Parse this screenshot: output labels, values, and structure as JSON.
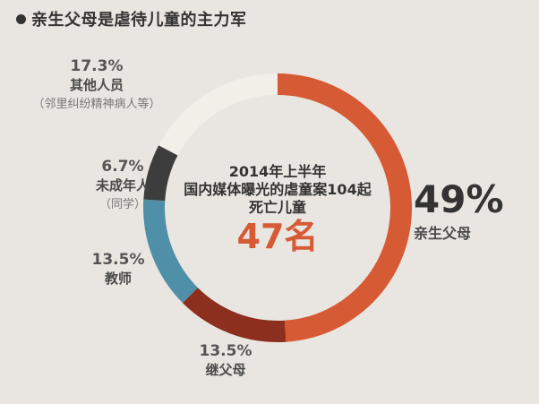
{
  "header": {
    "title": "亲生父母是虐待儿童的主力军"
  },
  "center": {
    "line1": "2014年上半年",
    "line2": "国内媒体曝光的虐童案104起",
    "line3": "死亡儿童",
    "deaths": "47名"
  },
  "chart_data": {
    "type": "pie",
    "variant": "donut",
    "slices": [
      {
        "label": "亲生父母",
        "value": 49,
        "value_text": "49%",
        "color": "#d65a34"
      },
      {
        "label": "继父母",
        "value": 13.5,
        "value_text": "13.5%",
        "color": "#8c2f1e"
      },
      {
        "label": "教师",
        "value": 13.5,
        "value_text": "13.5%",
        "color": "#4f8fa8"
      },
      {
        "label": "未成年人",
        "value": 6.7,
        "value_text": "6.7%",
        "note": "（同学）",
        "color": "#3d3d3d"
      },
      {
        "label": "其他人员",
        "value": 17.3,
        "value_text": "17.3%",
        "note": "（邻里纠纷精神病人等）",
        "color": "#f2efe9"
      }
    ]
  }
}
